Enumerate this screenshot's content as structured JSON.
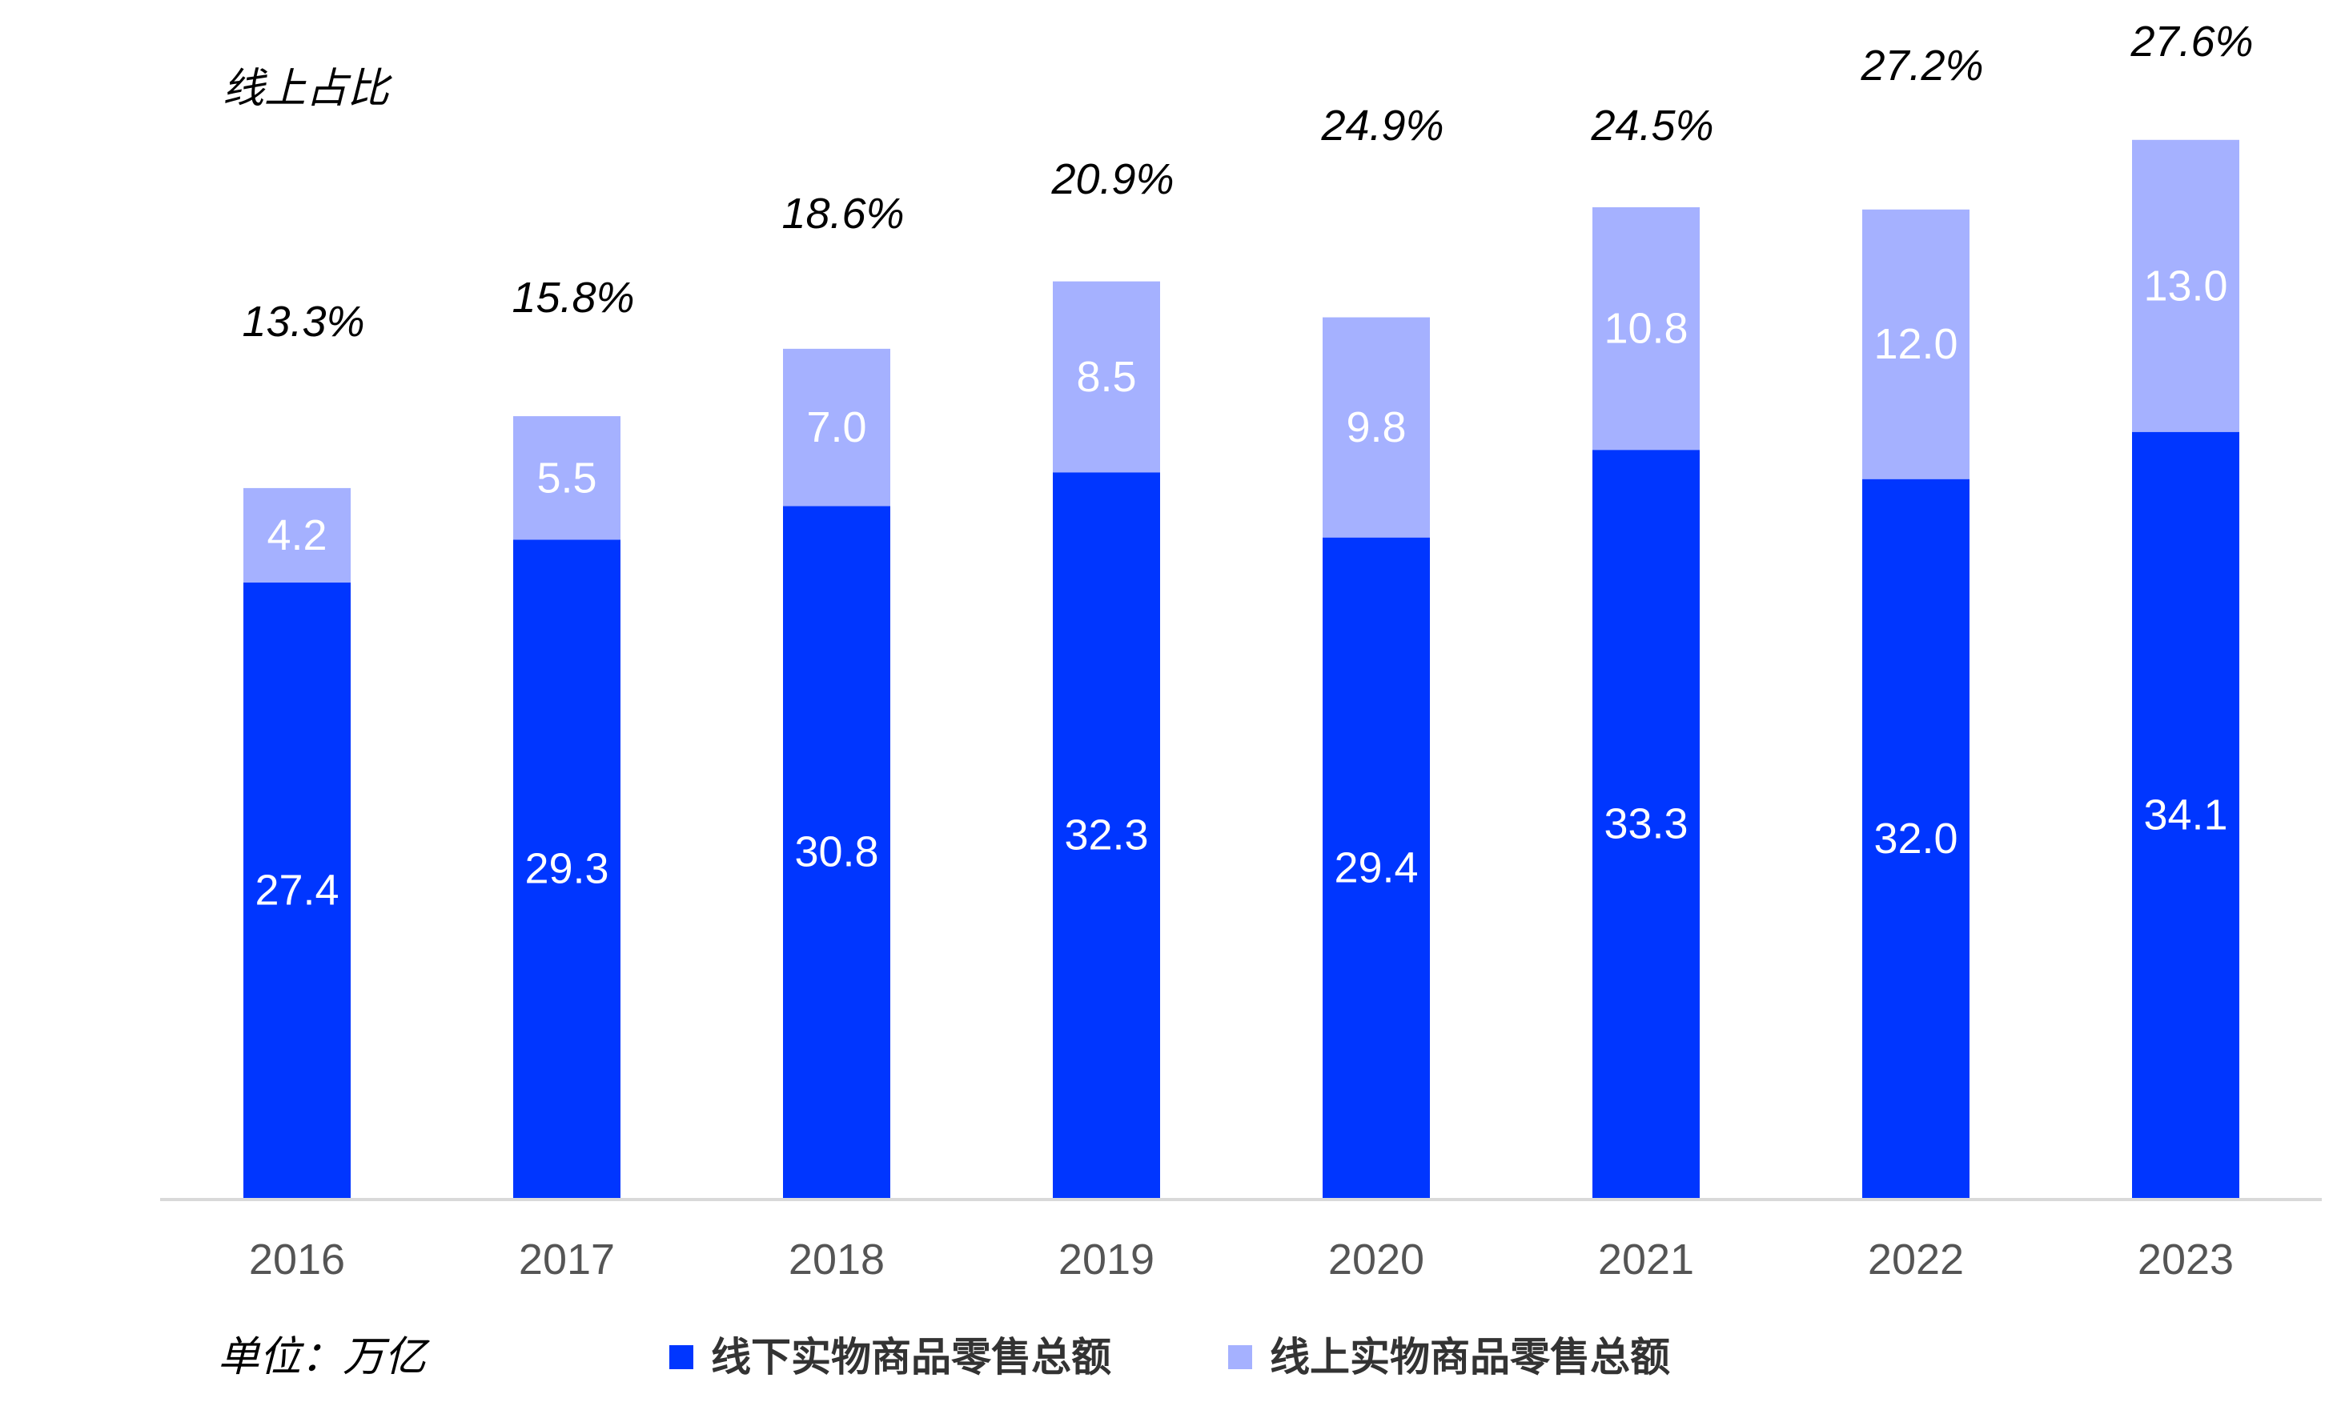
{
  "chart_data": {
    "type": "bar",
    "stacked": true,
    "categories": [
      "2016",
      "2017",
      "2018",
      "2019",
      "2020",
      "2021",
      "2022",
      "2023"
    ],
    "series": [
      {
        "name": "线下实物商品零售总额",
        "color": "#0036ff",
        "values": [
          27.4,
          29.3,
          30.8,
          32.3,
          29.4,
          33.3,
          32.0,
          34.1
        ],
        "labels": [
          "27.4",
          "29.3",
          "30.8",
          "32.3",
          "29.4",
          "33.3",
          "32.0",
          "34.1"
        ]
      },
      {
        "name": "线上实物商品零售总额",
        "color": "#a5b1ff",
        "values": [
          4.2,
          5.5,
          7.0,
          8.5,
          9.8,
          10.8,
          12.0,
          13.0
        ],
        "labels": [
          "4.2",
          "5.5",
          "7.0",
          "8.5",
          "9.8",
          "10.8",
          "12.0",
          "13.0"
        ]
      }
    ],
    "online_share": {
      "title": "线上占比",
      "values": [
        13.3,
        15.8,
        18.6,
        20.9,
        24.9,
        24.5,
        27.2,
        27.6
      ],
      "labels": [
        "13.3%",
        "15.8%",
        "18.6%",
        "20.9%",
        "24.9%",
        "24.5%",
        "27.2%",
        "27.6%"
      ]
    },
    "unit": "单位：万亿",
    "ylim": [
      0,
      49
    ],
    "grid": false,
    "legend": "bottom"
  }
}
